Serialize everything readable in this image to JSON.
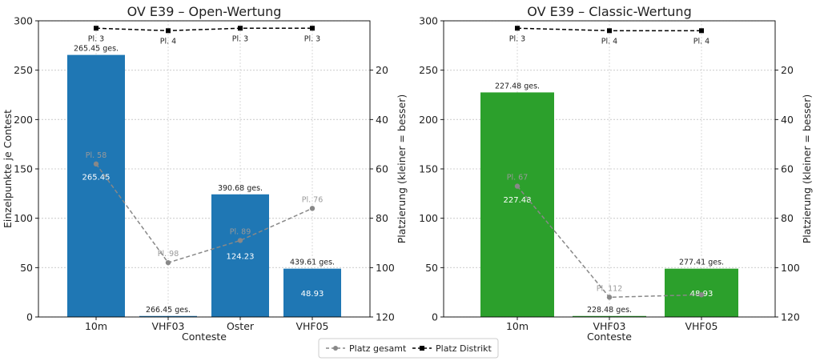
{
  "legend": {
    "placement": "bottom-center",
    "items": [
      {
        "label": "Platz gesamt",
        "color": "#888888",
        "marker": "circle",
        "dash": true
      },
      {
        "label": "Platz Distrikt",
        "color": "#000000",
        "marker": "square",
        "dash": true
      }
    ]
  },
  "chart_data": [
    {
      "type": "bar",
      "title": "OV E39 – Open-Wertung",
      "xlabel": "Conteste",
      "ylabel": "Einzelpunkte je Contest",
      "y2label": "Platzierung (kleiner = besser)",
      "ylim": [
        0,
        300
      ],
      "yticks": [
        0,
        50,
        100,
        150,
        200,
        250,
        300
      ],
      "y2lim": [
        120,
        0
      ],
      "y2ticks": [
        20,
        40,
        60,
        80,
        100,
        120
      ],
      "grid": true,
      "bar_color": "#1f77b4",
      "categories": [
        "10m",
        "VHF03",
        "Oster",
        "VHF05"
      ],
      "values": [
        265.45,
        1.0,
        124.23,
        48.93
      ],
      "inner_labels": [
        "265.45",
        "",
        "124.23",
        "48.93"
      ],
      "total_labels": [
        "265.45 ges.",
        "266.45 ges.",
        "390.68 ges.",
        "439.61 ges."
      ],
      "platz_gesamt": [
        58,
        98,
        89,
        76
      ],
      "platz_gesamt_labels": [
        "Pl. 58",
        "Pl. 98",
        "Pl. 89",
        "Pl. 76"
      ],
      "platz_distrikt": [
        3,
        4,
        3,
        3
      ],
      "platz_distrikt_labels": [
        "Pl. 3",
        "Pl. 4",
        "Pl. 3",
        "Pl. 3"
      ]
    },
    {
      "type": "bar",
      "title": "OV E39 – Classic-Wertung",
      "xlabel": "Conteste",
      "ylabel": "",
      "y2label": "Platzierung (kleiner = besser)",
      "ylim": [
        0,
        300
      ],
      "yticks": [
        0,
        50,
        100,
        150,
        200,
        250,
        300
      ],
      "y2lim": [
        120,
        0
      ],
      "y2ticks": [
        20,
        40,
        60,
        80,
        100,
        120
      ],
      "grid": true,
      "bar_color": "#2ca02c",
      "categories": [
        "10m",
        "VHF03",
        "VHF05"
      ],
      "values": [
        227.48,
        1.0,
        48.93
      ],
      "inner_labels": [
        "227.48",
        "",
        "48.93"
      ],
      "total_labels": [
        "227.48 ges.",
        "228.48 ges.",
        "277.41 ges."
      ],
      "platz_gesamt": [
        67,
        112,
        111
      ],
      "platz_gesamt_labels": [
        "Pl. 67",
        "Pl. 112",
        ""
      ],
      "platz_distrikt": [
        3,
        4,
        4
      ],
      "platz_distrikt_labels": [
        "Pl. 3",
        "Pl. 4",
        "Pl. 4"
      ]
    }
  ]
}
